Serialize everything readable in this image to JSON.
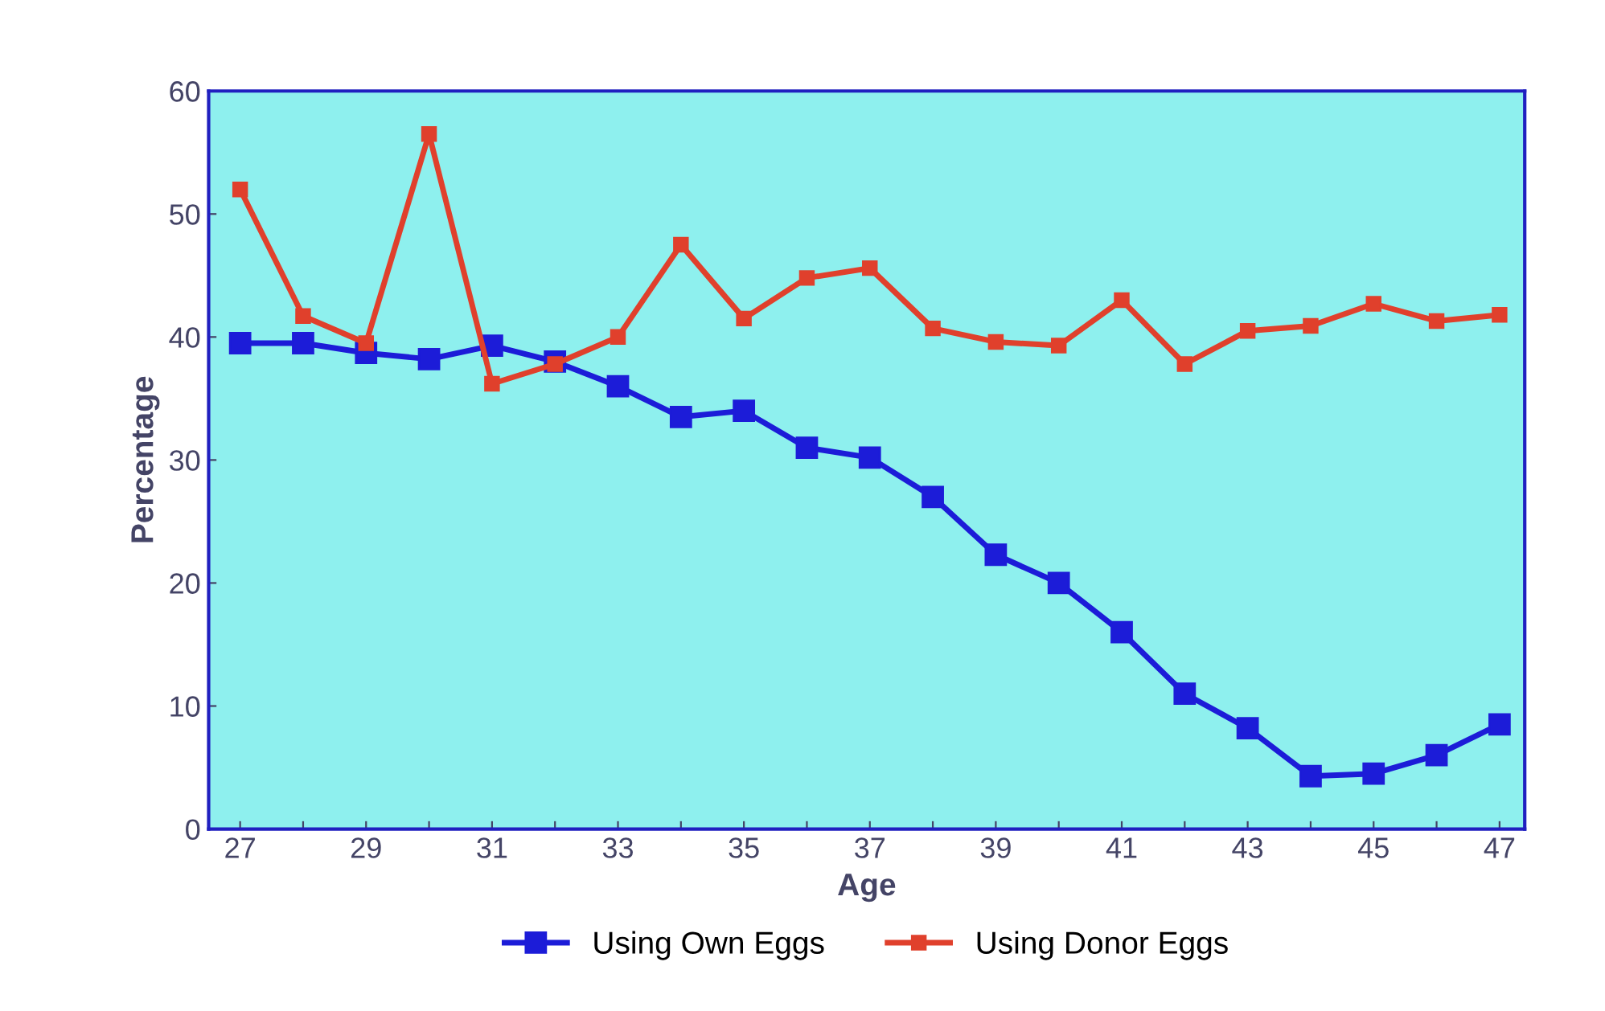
{
  "chart_data": {
    "type": "line",
    "xlabel": "Age",
    "ylabel": "Percentage",
    "x": [
      27,
      28,
      29,
      30,
      31,
      32,
      33,
      34,
      35,
      36,
      37,
      38,
      39,
      40,
      41,
      42,
      43,
      44,
      45,
      46,
      47
    ],
    "series": [
      {
        "name": "Using Own Eggs",
        "color": "#1c1cd8",
        "values": [
          39.5,
          39.5,
          38.7,
          38.2,
          39.3,
          38,
          36,
          33.5,
          34,
          31,
          30.2,
          27,
          22.3,
          20,
          16,
          11,
          8.2,
          4.3,
          4.5,
          6,
          8.5
        ]
      },
      {
        "name": "Using Donor Eggs",
        "color": "#e0402c",
        "values": [
          52,
          41.7,
          39.5,
          56.5,
          36.2,
          37.8,
          40,
          47.5,
          41.5,
          44.8,
          45.6,
          40.7,
          39.6,
          39.3,
          43,
          37.8,
          40.5,
          40.9,
          42.7,
          41.3,
          41.8
        ]
      }
    ],
    "xlim": [
      26.5,
      47.4
    ],
    "ylim": [
      0,
      60
    ],
    "xticks": [
      27,
      {
        "value": 28,
        "label": null
      },
      29,
      {
        "value": 30,
        "label": null
      },
      31,
      {
        "value": 32,
        "label": null
      },
      33,
      {
        "value": 34,
        "label": null
      },
      35,
      {
        "value": 36,
        "label": null
      },
      37,
      {
        "value": 38,
        "label": null
      },
      39,
      {
        "value": 40,
        "label": null
      },
      41,
      {
        "value": 42,
        "label": null
      },
      43,
      {
        "value": 44,
        "label": null
      },
      45,
      {
        "value": 46,
        "label": null
      },
      47
    ],
    "yticks": [
      0,
      10,
      20,
      30,
      40,
      50,
      60
    ],
    "legend": "bottom",
    "marker": "square",
    "line_style": "solid",
    "grid": false
  }
}
